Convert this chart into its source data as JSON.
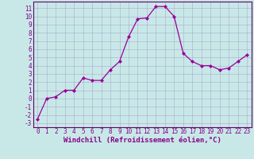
{
  "x": [
    0,
    1,
    2,
    3,
    4,
    5,
    6,
    7,
    8,
    9,
    10,
    11,
    12,
    13,
    14,
    15,
    16,
    17,
    18,
    19,
    20,
    21,
    22,
    23
  ],
  "y": [
    -2.5,
    0.0,
    0.2,
    1.0,
    1.0,
    2.5,
    2.2,
    2.2,
    3.5,
    4.5,
    7.5,
    9.7,
    9.8,
    11.2,
    11.2,
    10.0,
    5.5,
    4.5,
    4.0,
    4.0,
    3.5,
    3.7,
    4.5,
    5.3
  ],
  "line_color": "#990099",
  "marker": "D",
  "marker_size": 2.0,
  "bg_color": "#c8e8e8",
  "grid_color": "#aaaacc",
  "xlabel": "Windchill (Refroidissement éolien,°C)",
  "xlabel_fontsize": 6.5,
  "yticks": [
    -3,
    -2,
    -1,
    0,
    1,
    2,
    3,
    4,
    5,
    6,
    7,
    8,
    9,
    10,
    11
  ],
  "xlim": [
    -0.5,
    23.5
  ],
  "ylim": [
    -3.5,
    11.8
  ],
  "tick_fontsize": 5.5,
  "tick_color": "#880088",
  "spine_color": "#660066",
  "linewidth": 0.9
}
